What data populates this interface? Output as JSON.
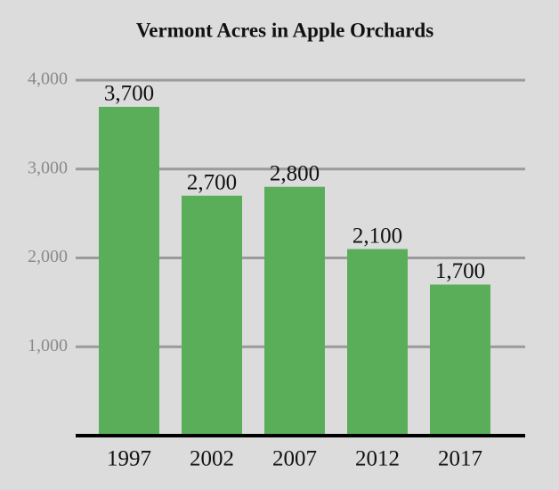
{
  "chart_data": {
    "type": "bar",
    "title": "Vermont Acres in Apple Orchards",
    "categories": [
      "1997",
      "2002",
      "2007",
      "2012",
      "2017"
    ],
    "values": [
      3700,
      2700,
      2800,
      2100,
      1700
    ],
    "value_labels": [
      "3,700",
      "2,700",
      "2,800",
      "2,100",
      "1,700"
    ],
    "color": "#5aae5a",
    "ylim": [
      0,
      4000
    ],
    "yticks": [
      {
        "value": 1000,
        "label": "1,000"
      },
      {
        "value": 2000,
        "label": "2,000"
      },
      {
        "value": 3000,
        "label": "3,000"
      },
      {
        "value": 4000,
        "label": "4,000"
      }
    ],
    "grid": true
  }
}
